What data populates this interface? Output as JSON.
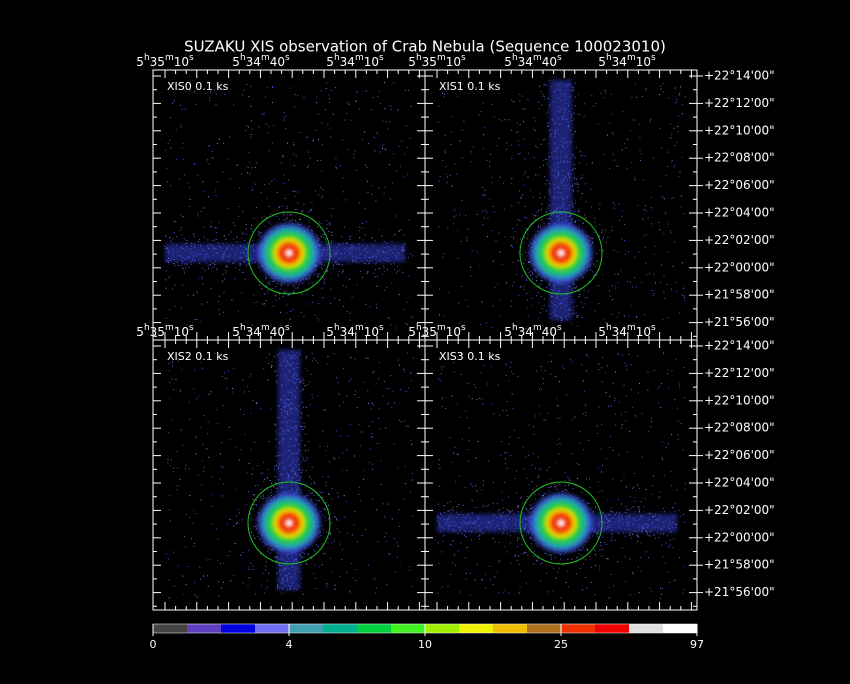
{
  "title": "SUZAKU XIS observation of Crab Nebula  (Sequence 100023010)",
  "panels": [
    {
      "label": "XIS0  0.1 ks",
      "ra_ticks": [
        "5h35m10s",
        "5h34m40s",
        "5h34m10s"
      ]
    },
    {
      "label": "XIS1  0.1 ks",
      "ra_ticks": [
        "5h35m10s",
        "5h34m40s",
        "5h34m10s"
      ]
    },
    {
      "label": "XIS2  0.1 ks",
      "ra_ticks": [
        "5h35m10s",
        "5h34m40s",
        "5h34m10s"
      ]
    },
    {
      "label": "XIS3  0.1 ks",
      "ra_ticks": [
        "5h35m10s",
        "5h34m40s",
        "5h34m10s"
      ]
    }
  ],
  "dec_ticks": [
    "+22°14'00\"",
    "+22°12'00\"",
    "+22°10'00\"",
    "+22°08'00\"",
    "+22°06'00\"",
    "+22°04'00\"",
    "+22°02'00\"",
    "+22°00'00\"",
    "+21°58'00\"",
    "+21°56'00\""
  ],
  "colorbar_labels": [
    0,
    4,
    10,
    25,
    97
  ]
}
